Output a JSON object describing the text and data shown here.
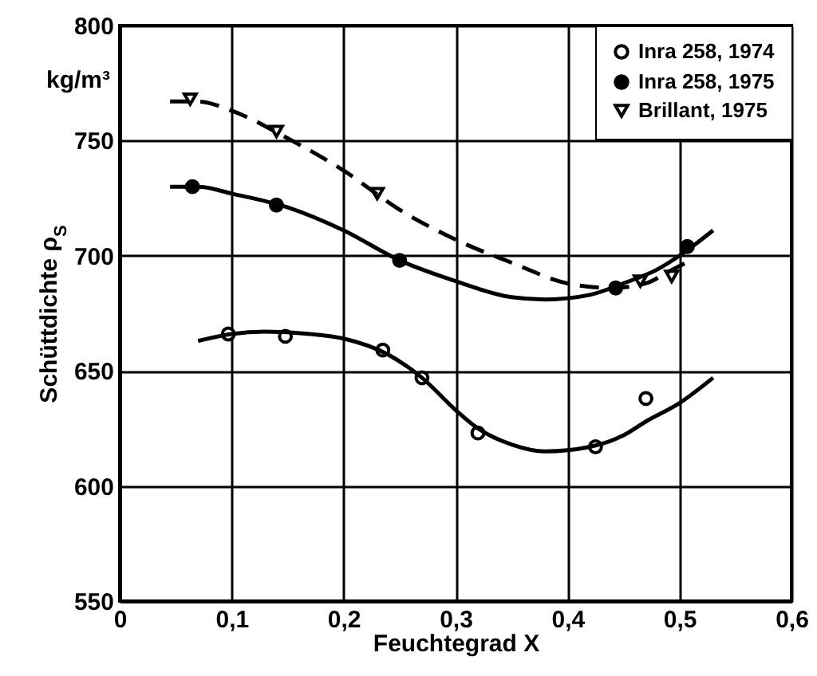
{
  "chart_data": {
    "type": "scatter",
    "xlabel": "Feuchtegrad X",
    "ylabel": "Schüttdichte ρ$_{S}$",
    "annotations": [
      "kg/m³"
    ],
    "xlim": [
      0,
      0.6
    ],
    "ylim": [
      550,
      800
    ],
    "xticks": [
      0,
      {
        "value": 0.1,
        "label": "0,1"
      },
      {
        "value": 0.2,
        "label": "0,2"
      },
      {
        "value": 0.3,
        "label": "0,3"
      },
      {
        "value": 0.4,
        "label": "0,4"
      },
      {
        "value": 0.5,
        "label": "0,5"
      },
      {
        "value": 0.6,
        "label": "0,6"
      }
    ],
    "yticks": [
      550,
      600,
      650,
      700,
      750,
      800
    ],
    "grid": true,
    "legend": "top right",
    "series": [
      {
        "name": "Inra 258, 1974",
        "marker": "circle",
        "color": "#000000",
        "x": [
          0.097,
          0.148,
          0.235,
          0.27,
          0.32,
          0.425,
          0.47
        ],
        "values": [
          666,
          665,
          659,
          647,
          623,
          617,
          638
        ]
      },
      {
        "name": "Inra 258, 1975",
        "marker": "filled-circle",
        "color": "#000000",
        "x": [
          0.065,
          0.14,
          0.25,
          0.443,
          0.507
        ],
        "values": [
          730,
          722,
          698,
          686,
          704
        ]
      },
      {
        "name": "Brillant,  1975",
        "marker": "triangle-down",
        "color": "#000000",
        "x": [
          0.063,
          0.14,
          0.23,
          0.465,
          0.493
        ],
        "values": [
          768,
          754,
          727,
          689,
          691
        ]
      },
      {
        "type": "line",
        "line_style": "solid",
        "color": "#000000",
        "x": [
          0.07,
          0.1,
          0.13,
          0.17,
          0.2,
          0.24,
          0.27,
          0.3,
          0.32,
          0.35,
          0.38,
          0.42,
          0.45,
          0.47,
          0.5,
          0.53
        ],
        "values": [
          663,
          666,
          667,
          666,
          664,
          657,
          647,
          633,
          625,
          618,
          615,
          617,
          622,
          628,
          636,
          647
        ]
      },
      {
        "type": "line",
        "line_style": "solid",
        "color": "#000000",
        "x": [
          0.045,
          0.07,
          0.1,
          0.15,
          0.2,
          0.25,
          0.3,
          0.35,
          0.38,
          0.42,
          0.45,
          0.48,
          0.5,
          0.53
        ],
        "values": [
          730,
          730,
          727,
          721,
          711,
          698,
          689,
          682,
          681,
          683,
          688,
          694,
          700,
          711
        ]
      },
      {
        "type": "line",
        "line_style": "dashed",
        "color": "#000000",
        "x": [
          0.045,
          0.07,
          0.1,
          0.15,
          0.2,
          0.25,
          0.3,
          0.35,
          0.4,
          0.44,
          0.47,
          0.49,
          0.51
        ],
        "values": [
          767,
          767,
          763,
          751,
          737,
          720,
          707,
          697,
          688,
          686,
          688,
          693,
          698
        ]
      }
    ]
  }
}
